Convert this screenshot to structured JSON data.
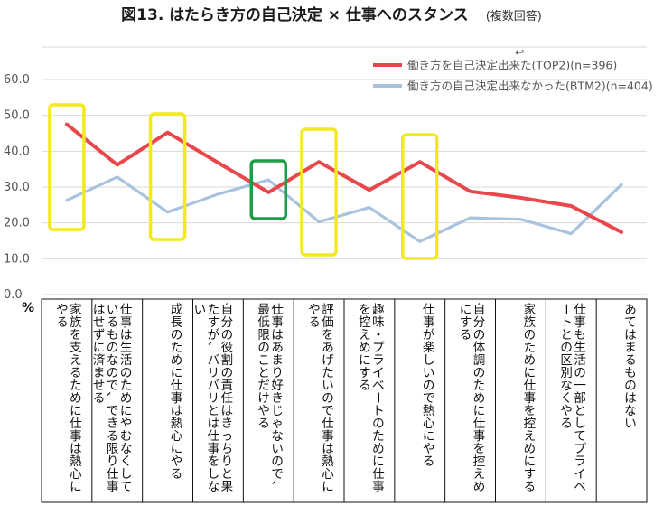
{
  "header": {
    "title": "図13. はたらき方の自己決定 × 仕事へのスタンス",
    "subtitle": "(複数回答)"
  },
  "chart_data": {
    "type": "line",
    "title": "図13. はたらき方の自己決定 × 仕事へのスタンス",
    "subtitle": "(複数回答)",
    "ylabel": "%",
    "ylim": [
      0,
      60
    ],
    "yticks": [
      "0.0",
      "10.0",
      "20.0",
      "30.0",
      "40.0",
      "50.0",
      "60.0"
    ],
    "legend_position": "top-right",
    "categories": [
      "家族を支えるために仕事は熱心にやる",
      "仕事は生活のためにやむなくしているものなので、できる限り仕事はせずに済ませる",
      "成長のために仕事は熱心にやる",
      "自分の役割の責任はきっちりと果たすが、バリバリとは仕事をしない",
      "仕事はあまり好きじゃないので、最低限のことだけやる",
      "評価をあげたいので仕事は熱心にやる",
      "趣味・プライベートのために仕事を控えめにする",
      "仕事が楽しいので熱心にやる",
      "自分の体調のために仕事を控えめにする",
      "家族のために仕事を控えめにする",
      "仕事も生活の一部としてプライベートとの区別なくやる",
      "あてはまるものはない"
    ],
    "series": [
      {
        "name": "働き方を自己決定出来た(TOP2)(n=396)",
        "color": "#e8474c",
        "values": [
          47.5,
          36.2,
          45.2,
          36.8,
          28.5,
          37.0,
          29.2,
          37.0,
          28.8,
          27.0,
          24.7,
          17.4
        ]
      },
      {
        "name": "働き方の自己決定出来なかった(BTM2)(n=404)",
        "color": "#a9c3de",
        "values": [
          26.3,
          32.8,
          23.0,
          28.0,
          32.0,
          20.3,
          24.3,
          14.8,
          21.4,
          21.0,
          17.0,
          30.7
        ]
      }
    ],
    "highlights": [
      {
        "category_index": 0,
        "color": "#f2ea1c"
      },
      {
        "category_index": 2,
        "color": "#f2ea1c"
      },
      {
        "category_index": 4,
        "color": "#1e9e48"
      },
      {
        "category_index": 5,
        "color": "#f2ea1c"
      },
      {
        "category_index": 7,
        "color": "#f2ea1c"
      }
    ],
    "grid": true,
    "legend_mark": "↩"
  }
}
